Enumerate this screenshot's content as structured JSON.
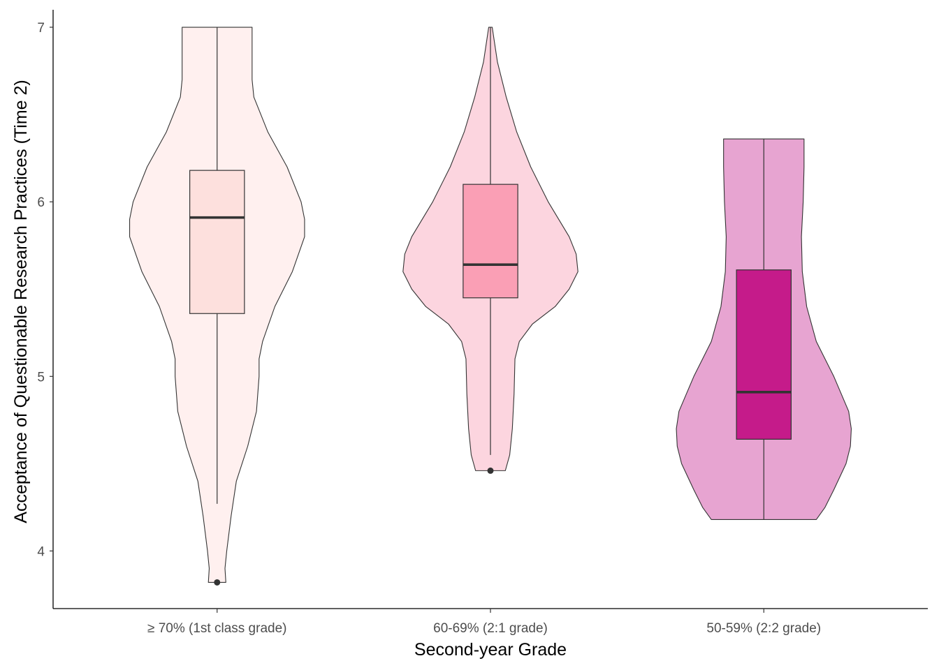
{
  "chart_data": {
    "type": "violin",
    "title": "",
    "xlabel": "Second-year Grade",
    "ylabel": "Acceptance of Questionable Research Practices (Time 2)",
    "ylim": [
      3.67,
      7.1
    ],
    "yticks": [
      4,
      5,
      6,
      7
    ],
    "grid": false,
    "legend": "none",
    "categories": [
      "≥ 70% (1st class grade)",
      "60-69% (2:1 grade)",
      "50-59% (2:2 grade)"
    ],
    "groups": [
      {
        "category": "≥ 70% (1st class grade)",
        "violin_color": "#fff0ef",
        "box_color": "#fde0dd",
        "min": 3.82,
        "max": 7.0,
        "whisker_low": 4.27,
        "whisker_high": 7.0,
        "q1": 5.36,
        "median": 5.91,
        "q3": 6.18,
        "outliers": [
          3.82
        ],
        "density": [
          [
            3.82,
            0.1
          ],
          [
            3.9,
            0.09
          ],
          [
            4.0,
            0.11
          ],
          [
            4.2,
            0.16
          ],
          [
            4.4,
            0.22
          ],
          [
            4.6,
            0.35
          ],
          [
            4.8,
            0.45
          ],
          [
            5.0,
            0.48
          ],
          [
            5.1,
            0.48
          ],
          [
            5.2,
            0.52
          ],
          [
            5.4,
            0.66
          ],
          [
            5.6,
            0.86
          ],
          [
            5.8,
            1.0
          ],
          [
            5.9,
            1.0
          ],
          [
            6.0,
            0.96
          ],
          [
            6.2,
            0.8
          ],
          [
            6.4,
            0.58
          ],
          [
            6.6,
            0.42
          ],
          [
            6.7,
            0.4
          ],
          [
            6.8,
            0.4
          ],
          [
            6.9,
            0.4
          ],
          [
            7.0,
            0.4
          ]
        ]
      },
      {
        "category": "60-69% (2:1 grade)",
        "violin_color": "#fcd5df",
        "box_color": "#fa9fb5",
        "min": 4.46,
        "max": 7.0,
        "whisker_low": 4.55,
        "whisker_high": 7.0,
        "q1": 5.45,
        "median": 5.64,
        "q3": 6.1,
        "outliers": [
          4.46
        ],
        "density": [
          [
            4.46,
            0.17
          ],
          [
            4.55,
            0.22
          ],
          [
            4.7,
            0.25
          ],
          [
            4.9,
            0.27
          ],
          [
            5.1,
            0.28
          ],
          [
            5.2,
            0.33
          ],
          [
            5.3,
            0.48
          ],
          [
            5.4,
            0.74
          ],
          [
            5.5,
            0.9
          ],
          [
            5.6,
            1.0
          ],
          [
            5.7,
            0.98
          ],
          [
            5.8,
            0.9
          ],
          [
            6.0,
            0.66
          ],
          [
            6.2,
            0.46
          ],
          [
            6.4,
            0.3
          ],
          [
            6.6,
            0.18
          ],
          [
            6.8,
            0.08
          ],
          [
            6.9,
            0.05
          ],
          [
            7.0,
            0.02
          ]
        ]
      },
      {
        "category": "50-59% (2:2 grade)",
        "violin_color": "#e7a4d1",
        "box_color": "#c51b8a",
        "min": 4.18,
        "max": 6.36,
        "whisker_low": 4.18,
        "whisker_high": 6.36,
        "q1": 4.64,
        "median": 4.91,
        "q3": 5.61,
        "outliers": [],
        "density": [
          [
            4.18,
            0.6
          ],
          [
            4.25,
            0.7
          ],
          [
            4.35,
            0.8
          ],
          [
            4.5,
            0.94
          ],
          [
            4.6,
            0.99
          ],
          [
            4.7,
            1.0
          ],
          [
            4.8,
            0.97
          ],
          [
            5.0,
            0.8
          ],
          [
            5.2,
            0.6
          ],
          [
            5.4,
            0.49
          ],
          [
            5.6,
            0.44
          ],
          [
            5.8,
            0.43
          ],
          [
            6.0,
            0.45
          ],
          [
            6.2,
            0.46
          ],
          [
            6.36,
            0.46
          ]
        ]
      }
    ]
  }
}
